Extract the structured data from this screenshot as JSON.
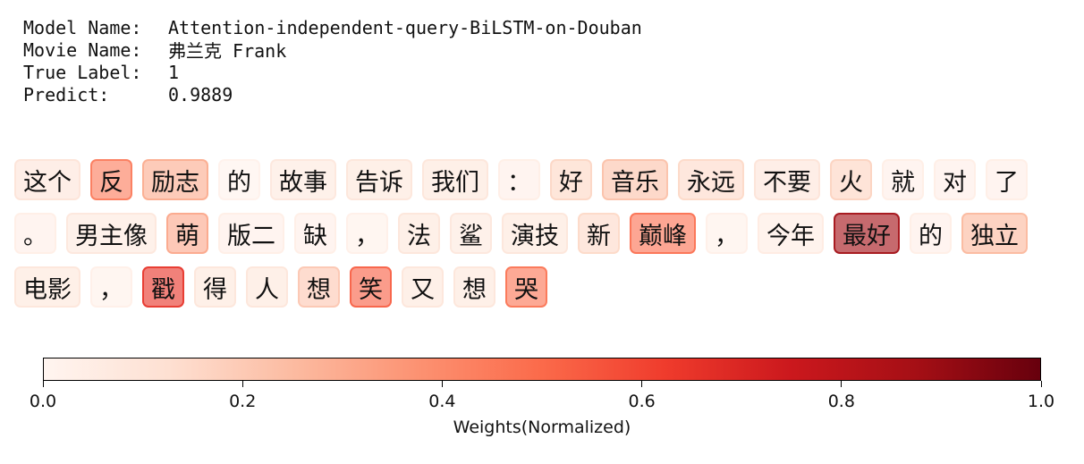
{
  "meta": {
    "model_key": "Model Name:",
    "model_value": "Attention-independent-query-BiLSTM-on-Douban",
    "movie_key": "Movie Name:",
    "movie_value": "弗兰克 Frank",
    "label_key": "True Label:",
    "label_value": "1",
    "predict_key": "Predict:",
    "predict_value": "0.9889"
  },
  "chart_data": {
    "type": "heatmap",
    "colormap": "Reds",
    "colormap_stops": [
      "#fff5f0",
      "#fee0d2",
      "#fcbba1",
      "#fc9272",
      "#fb6a4a",
      "#ef3b2c",
      "#cb181d",
      "#a50f15",
      "#67000d"
    ],
    "lines": [
      [
        {
          "text": "这个",
          "weight": 0.1
        },
        {
          "text": "反",
          "weight": 0.45
        },
        {
          "text": "励志",
          "weight": 0.3
        },
        {
          "text": "的",
          "weight": 0.02
        },
        {
          "text": "故事",
          "weight": 0.08
        },
        {
          "text": "告诉",
          "weight": 0.09
        },
        {
          "text": "我们",
          "weight": 0.09
        },
        {
          "text": "：",
          "weight": 0.04
        },
        {
          "text": "好",
          "weight": 0.16
        },
        {
          "text": "音乐",
          "weight": 0.23
        },
        {
          "text": "永远",
          "weight": 0.15
        },
        {
          "text": "不要",
          "weight": 0.1
        },
        {
          "text": "火",
          "weight": 0.17
        },
        {
          "text": "就",
          "weight": 0.04
        },
        {
          "text": "对",
          "weight": 0.04
        },
        {
          "text": "了",
          "weight": 0.04
        }
      ],
      [
        {
          "text": "。",
          "weight": 0.04
        },
        {
          "text": "男主像",
          "weight": 0.08
        },
        {
          "text": "萌",
          "weight": 0.31
        },
        {
          "text": "版二",
          "weight": 0.04
        },
        {
          "text": "缺",
          "weight": 0.04
        },
        {
          "text": "，",
          "weight": 0.03
        },
        {
          "text": "法",
          "weight": 0.09
        },
        {
          "text": "鲨",
          "weight": 0.08
        },
        {
          "text": "演技",
          "weight": 0.09
        },
        {
          "text": "新",
          "weight": 0.15
        },
        {
          "text": "巅峰",
          "weight": 0.48
        },
        {
          "text": "，",
          "weight": 0.03
        },
        {
          "text": "今年",
          "weight": 0.06
        },
        {
          "text": "最好",
          "weight": 0.88
        },
        {
          "text": "的",
          "weight": 0.04
        },
        {
          "text": "独立",
          "weight": 0.26
        }
      ],
      [
        {
          "text": "电影",
          "weight": 0.09
        },
        {
          "text": "，",
          "weight": 0.03
        },
        {
          "text": "戳",
          "weight": 0.65
        },
        {
          "text": "得",
          "weight": 0.09
        },
        {
          "text": "人",
          "weight": 0.09
        },
        {
          "text": "想",
          "weight": 0.21
        },
        {
          "text": "笑",
          "weight": 0.53
        },
        {
          "text": "又",
          "weight": 0.09
        },
        {
          "text": "想",
          "weight": 0.09
        },
        {
          "text": "哭",
          "weight": 0.47
        }
      ]
    ],
    "colorbar": {
      "range": [
        0.0,
        1.0
      ],
      "ticks": [
        "0.0",
        "0.2",
        "0.4",
        "0.6",
        "0.8",
        "1.0"
      ],
      "label": "Weights(Normalized)"
    }
  }
}
